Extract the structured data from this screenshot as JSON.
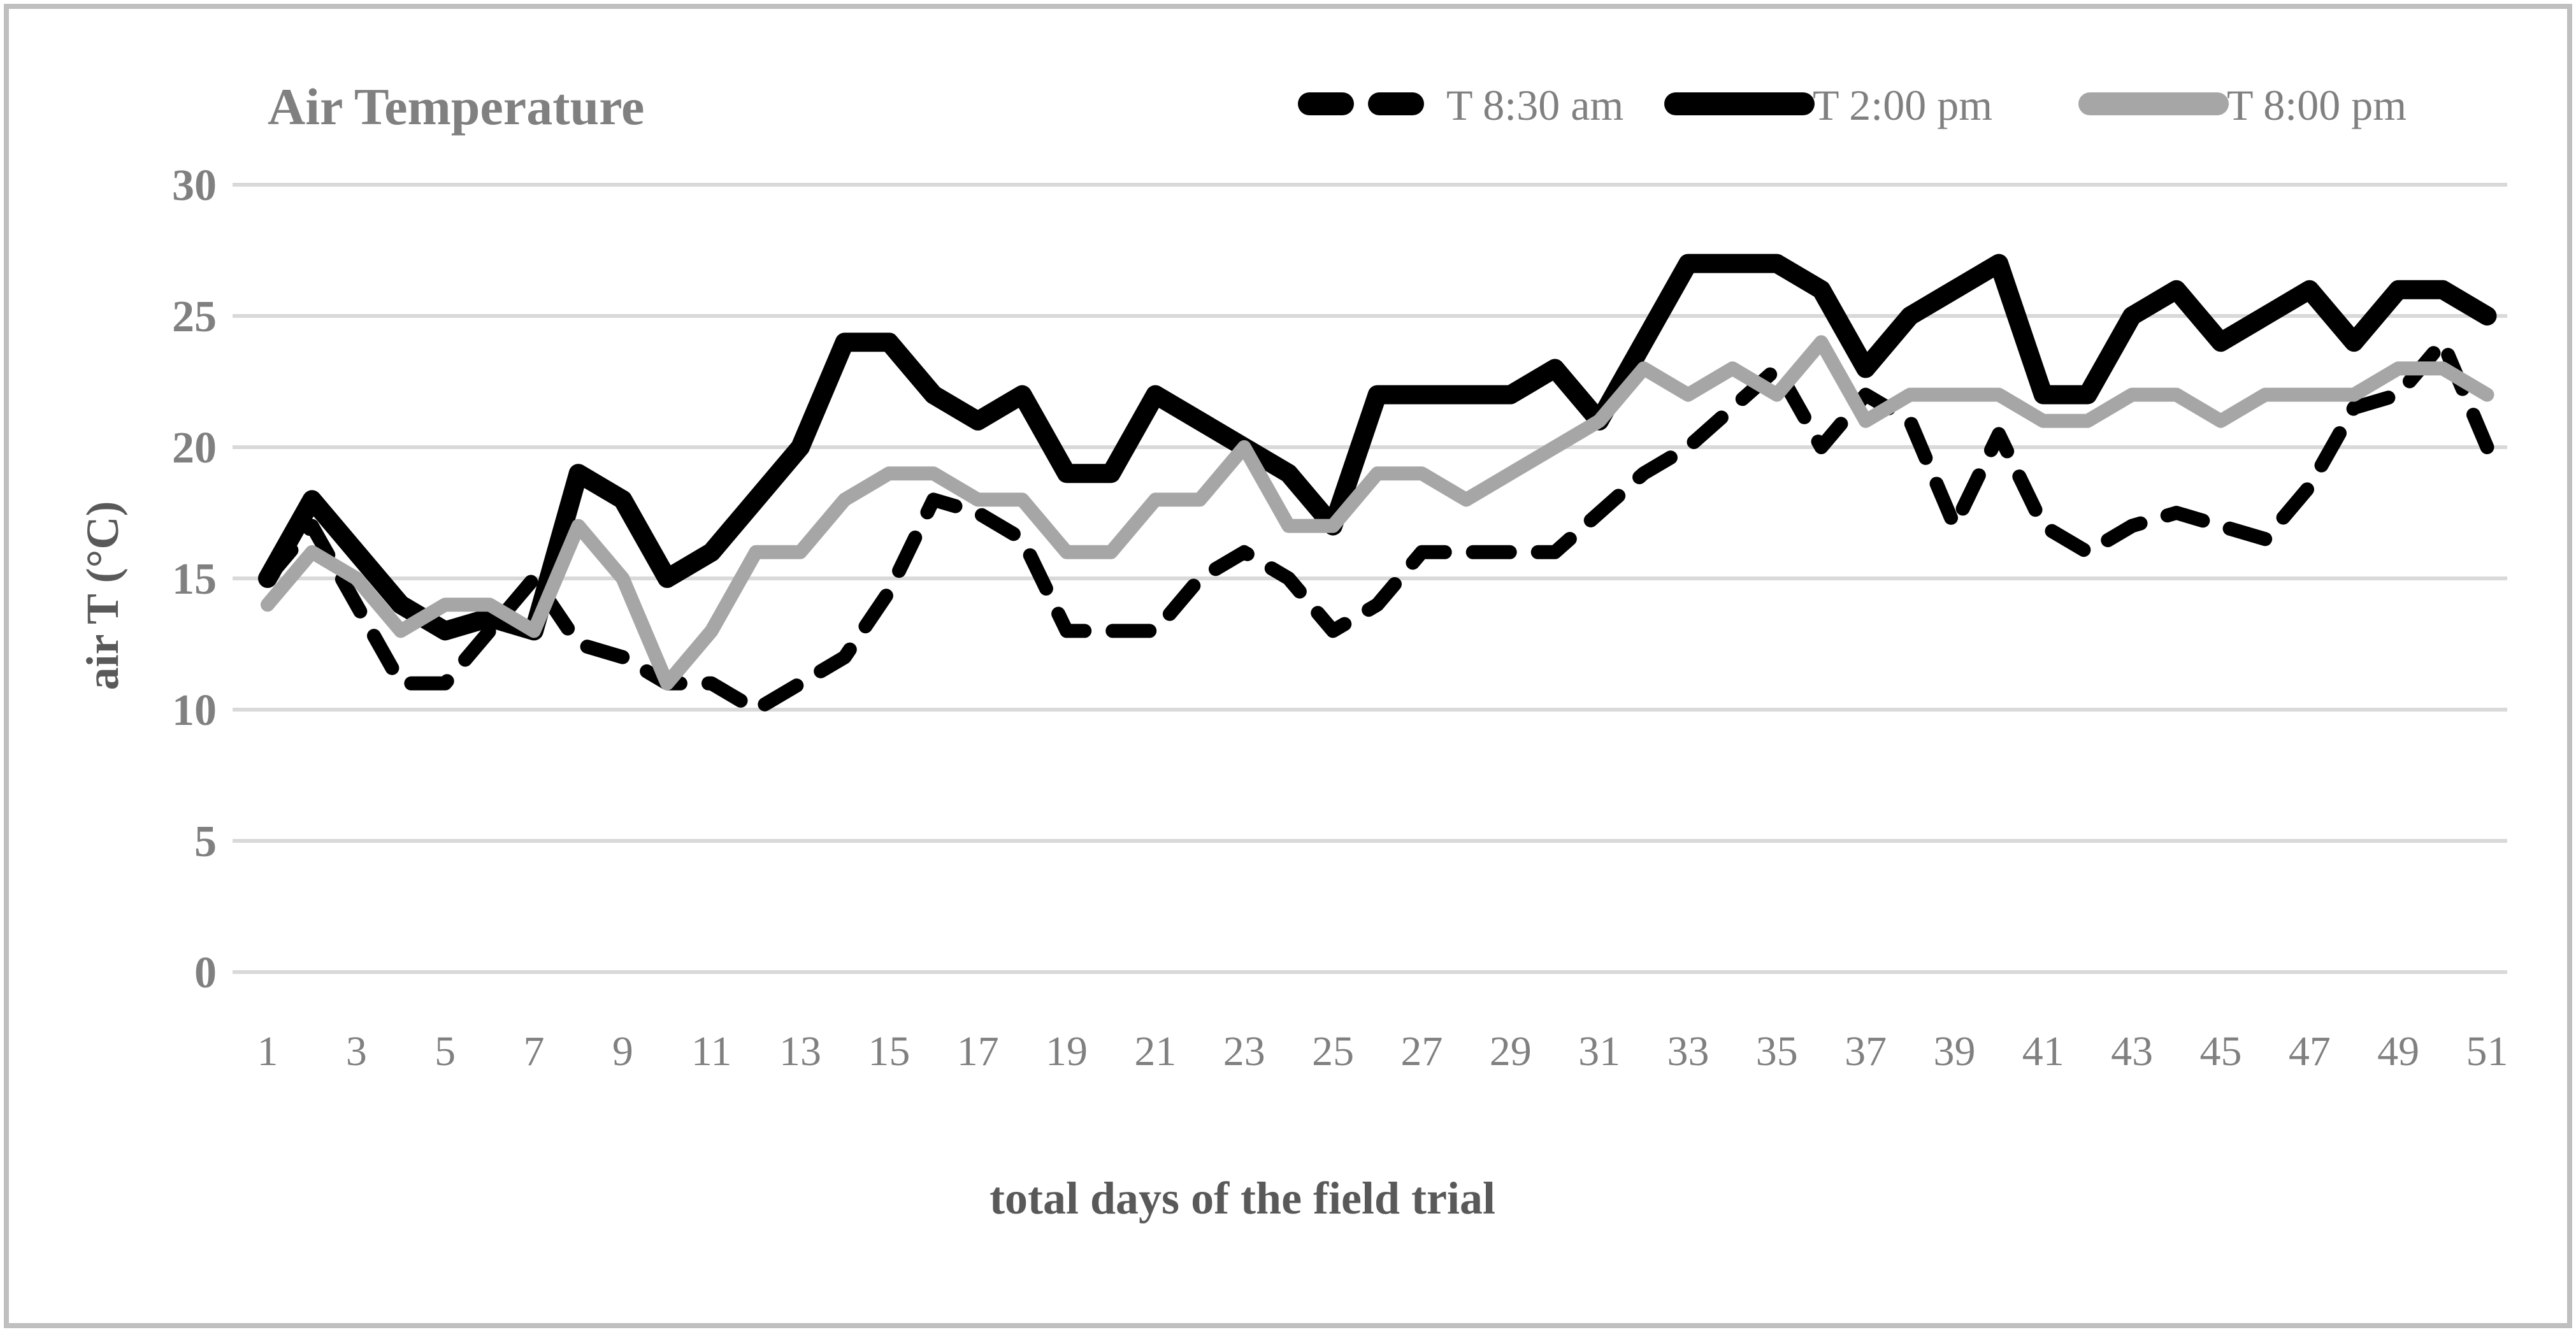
{
  "chart_data": {
    "type": "line",
    "title": "Air Temperature",
    "xlabel": "total days of the field trial",
    "ylabel": "air T (°C)",
    "ylim": [
      0,
      30
    ],
    "ytick_step": 5,
    "y_ticks": [
      30,
      25,
      20,
      15,
      10,
      5,
      0
    ],
    "x_ticks": [
      1,
      3,
      5,
      7,
      9,
      11,
      13,
      15,
      17,
      19,
      21,
      23,
      25,
      27,
      29,
      31,
      33,
      35,
      37,
      39,
      41,
      43,
      45,
      47,
      49,
      51
    ],
    "grid": "horizontal",
    "legend_position": "top-right",
    "x": [
      1,
      2,
      3,
      4,
      5,
      6,
      7,
      8,
      9,
      10,
      11,
      12,
      13,
      14,
      15,
      16,
      17,
      18,
      19,
      20,
      21,
      22,
      23,
      24,
      25,
      26,
      27,
      28,
      29,
      30,
      31,
      32,
      33,
      34,
      35,
      36,
      37,
      38,
      39,
      40,
      41,
      42,
      43,
      44,
      45,
      46,
      47,
      48,
      49,
      50,
      51
    ],
    "series": [
      {
        "name": "T  8:30 am",
        "style": "dashed",
        "color": "#000000",
        "values": [
          15,
          17,
          14,
          11,
          11,
          13,
          15,
          12.5,
          12,
          11,
          11,
          10,
          11,
          12,
          14.5,
          18,
          17.5,
          16.5,
          13,
          13,
          13,
          15,
          16,
          15,
          13,
          14,
          16,
          16,
          16,
          16,
          17.5,
          19,
          20,
          21.5,
          23,
          20,
          22,
          21,
          17,
          20.5,
          17,
          16,
          17,
          17.5,
          17,
          16.5,
          18.5,
          21.5,
          22,
          24,
          20
        ]
      },
      {
        "name": "T  2:00 pm",
        "style": "solid-thick",
        "color": "#000000",
        "values": [
          15,
          18,
          16,
          14,
          13,
          13.5,
          13,
          19,
          18,
          15,
          16,
          18,
          20,
          24,
          24,
          22,
          21,
          22,
          19,
          19,
          22,
          21,
          20,
          19,
          17,
          22,
          22,
          22,
          22,
          23,
          21,
          24,
          27,
          27,
          27,
          26,
          23,
          25,
          26,
          27,
          22,
          22,
          25,
          26,
          24,
          25,
          26,
          24,
          26,
          26,
          25
        ]
      },
      {
        "name": "T  8:00 pm",
        "style": "solid",
        "color": "#a6a6a6",
        "values": [
          14,
          16,
          15,
          13,
          14,
          14,
          13,
          17,
          15,
          11,
          13,
          16,
          16,
          18,
          19,
          19,
          18,
          18,
          16,
          16,
          18,
          18,
          20,
          17,
          17,
          19,
          19,
          18,
          19,
          20,
          21,
          23,
          22,
          23,
          22,
          24,
          21,
          22,
          22,
          22,
          21,
          21,
          22,
          22,
          21,
          22,
          22,
          22,
          23,
          23,
          22
        ]
      }
    ]
  },
  "styling": {
    "gridline_color": "#d9d9d9",
    "frame_color": "#bfbfbf",
    "tick_label_color": "#808080",
    "title_color": "#808080",
    "axis_title_color": "#595959",
    "background": "#ffffff"
  }
}
